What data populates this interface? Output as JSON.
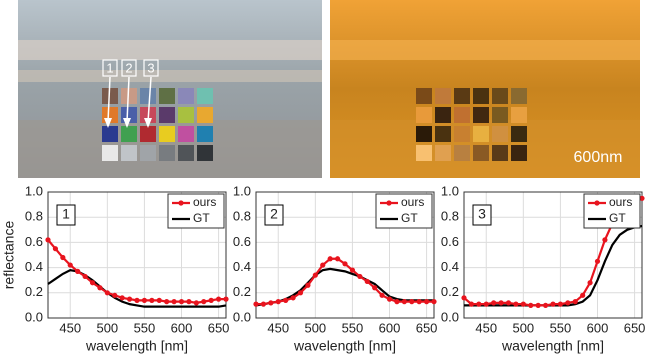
{
  "figure": {
    "markers": [
      "1",
      "2",
      "3"
    ],
    "band_label": "600nm"
  },
  "chart_data": [
    {
      "type": "line",
      "panel_label": "1",
      "xlabel": "wavelength [nm]",
      "ylabel": "reflectance",
      "x": [
        420,
        430,
        440,
        450,
        460,
        470,
        480,
        490,
        500,
        510,
        520,
        530,
        540,
        550,
        560,
        570,
        580,
        590,
        600,
        610,
        620,
        630,
        640,
        650,
        660
      ],
      "series": [
        {
          "name": "ours",
          "color": "#e8141e",
          "values": [
            0.62,
            0.55,
            0.48,
            0.42,
            0.37,
            0.33,
            0.28,
            0.24,
            0.2,
            0.18,
            0.16,
            0.15,
            0.14,
            0.14,
            0.14,
            0.14,
            0.13,
            0.13,
            0.13,
            0.13,
            0.12,
            0.13,
            0.14,
            0.15,
            0.15
          ]
        },
        {
          "name": "GT",
          "color": "#000000",
          "values": [
            0.27,
            0.31,
            0.35,
            0.38,
            0.37,
            0.34,
            0.3,
            0.25,
            0.2,
            0.16,
            0.13,
            0.11,
            0.1,
            0.09,
            0.09,
            0.09,
            0.09,
            0.09,
            0.09,
            0.09,
            0.09,
            0.09,
            0.09,
            0.09,
            0.1
          ]
        }
      ],
      "xlim": [
        420,
        660
      ],
      "xticks": [
        450,
        500,
        550,
        600,
        650
      ],
      "ylim": [
        0,
        1
      ],
      "yticks": [
        {
          "value": 0,
          "label": "0.0"
        },
        {
          "value": 0.2,
          "label": "0.2"
        },
        {
          "value": 0.4,
          "label": "0.4"
        },
        {
          "value": 0.6,
          "label": "0.6"
        },
        {
          "value": 0.8,
          "label": "0.8"
        },
        {
          "value": 1,
          "label": "1.0"
        }
      ],
      "grid": true,
      "legend": "upper-right"
    },
    {
      "type": "line",
      "panel_label": "2",
      "xlabel": "wavelength [nm]",
      "x": [
        420,
        430,
        440,
        450,
        460,
        470,
        480,
        490,
        500,
        510,
        520,
        530,
        540,
        550,
        560,
        570,
        580,
        590,
        600,
        610,
        620,
        630,
        640,
        650,
        660
      ],
      "series": [
        {
          "name": "ours",
          "color": "#e8141e",
          "values": [
            0.11,
            0.11,
            0.12,
            0.13,
            0.14,
            0.16,
            0.2,
            0.26,
            0.34,
            0.42,
            0.47,
            0.47,
            0.43,
            0.38,
            0.33,
            0.29,
            0.24,
            0.18,
            0.15,
            0.13,
            0.13,
            0.13,
            0.13,
            0.13,
            0.13
          ]
        },
        {
          "name": "GT",
          "color": "#000000",
          "values": [
            0.1,
            0.11,
            0.12,
            0.13,
            0.15,
            0.18,
            0.22,
            0.28,
            0.34,
            0.38,
            0.39,
            0.38,
            0.37,
            0.35,
            0.33,
            0.3,
            0.27,
            0.22,
            0.17,
            0.15,
            0.14,
            0.14,
            0.14,
            0.14,
            0.14
          ]
        }
      ],
      "xlim": [
        420,
        660
      ],
      "xticks": [
        450,
        500,
        550,
        600,
        650
      ],
      "ylim": [
        0,
        1
      ],
      "yticks": [
        {
          "value": 0,
          "label": "0.0"
        },
        {
          "value": 0.2,
          "label": "0.2"
        },
        {
          "value": 0.4,
          "label": "0.4"
        },
        {
          "value": 0.6,
          "label": "0.6"
        },
        {
          "value": 0.8,
          "label": "0.8"
        },
        {
          "value": 1,
          "label": "1.0"
        }
      ],
      "grid": true,
      "legend": "upper-right"
    },
    {
      "type": "line",
      "panel_label": "3",
      "xlabel": "wavelength [nm]",
      "x": [
        420,
        430,
        440,
        450,
        460,
        470,
        480,
        490,
        500,
        510,
        520,
        530,
        540,
        550,
        560,
        570,
        580,
        590,
        600,
        610,
        620,
        630,
        640,
        650,
        660
      ],
      "series": [
        {
          "name": "ours",
          "color": "#e8141e",
          "values": [
            0.16,
            0.11,
            0.11,
            0.11,
            0.12,
            0.12,
            0.12,
            0.11,
            0.11,
            0.1,
            0.1,
            0.1,
            0.11,
            0.11,
            0.12,
            0.13,
            0.18,
            0.28,
            0.45,
            0.62,
            0.75,
            0.84,
            0.9,
            0.93,
            0.95
          ]
        },
        {
          "name": "GT",
          "color": "#000000",
          "values": [
            0.1,
            0.1,
            0.1,
            0.1,
            0.1,
            0.1,
            0.1,
            0.1,
            0.1,
            0.1,
            0.1,
            0.1,
            0.1,
            0.1,
            0.1,
            0.11,
            0.13,
            0.18,
            0.3,
            0.45,
            0.58,
            0.66,
            0.7,
            0.72,
            0.73
          ]
        }
      ],
      "xlim": [
        420,
        660
      ],
      "xticks": [
        450,
        500,
        550,
        600,
        650
      ],
      "ylim": [
        0,
        1
      ],
      "yticks": [
        {
          "value": 0,
          "label": "0.0"
        },
        {
          "value": 0.2,
          "label": "0.2"
        },
        {
          "value": 0.4,
          "label": "0.4"
        },
        {
          "value": 0.6,
          "label": "0.6"
        },
        {
          "value": 0.8,
          "label": "0.8"
        },
        {
          "value": 1,
          "label": "1.0"
        }
      ],
      "grid": true,
      "legend": "upper-right"
    }
  ]
}
